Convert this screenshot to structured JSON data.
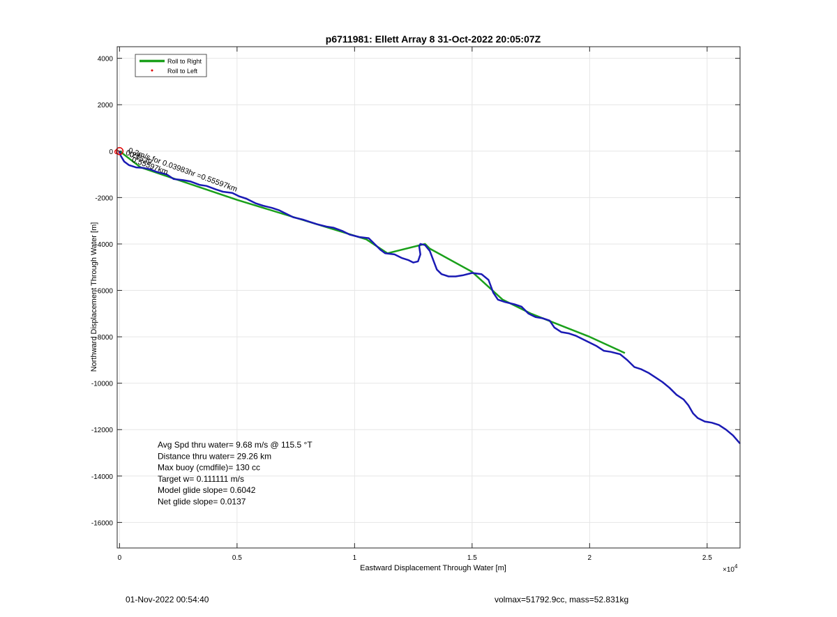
{
  "chart_data": {
    "type": "line",
    "title": "p6711981: Ellett Array 8 31-Oct-2022 20:05:07Z",
    "xlabel": "Eastward Displacement Through Water [m]",
    "ylabel": "Northward Displacement Through Water [m]",
    "x_exponent_label": "×10",
    "x_exponent_power": "4",
    "xlim": [
      -100,
      26400
    ],
    "ylim": [
      -17100,
      4500
    ],
    "x_scale": 10000,
    "xticks": [
      0,
      5000,
      10000,
      15000,
      20000,
      25000
    ],
    "xtick_labels": [
      "0",
      "0.5",
      "1",
      "1.5",
      "2",
      "2.5"
    ],
    "yticks": [
      4000,
      2000,
      0,
      -2000,
      -4000,
      -6000,
      -8000,
      -10000,
      -12000,
      -14000,
      -16000
    ],
    "ytick_labels": [
      "4000",
      "2000",
      "0",
      "-2000",
      "-4000",
      "-6000",
      "-8000",
      "-10000",
      "-12000",
      "-14000",
      "-16000"
    ],
    "grid": true,
    "legend_position": "top-left",
    "legend": [
      {
        "label": "Roll to Right",
        "color": "#1aa01a",
        "style": "line"
      },
      {
        "label": "Roll to Left",
        "color": "#e00000",
        "style": "dot"
      }
    ],
    "series": [
      {
        "name": "Roll to Right",
        "color": "#1aa01a",
        "x": [
          0,
          900,
          5000,
          10500,
          11400,
          13000,
          13200,
          15000,
          16300,
          17500,
          19000,
          20000,
          21500
        ],
        "y": [
          0,
          -700,
          -2100,
          -3800,
          -4400,
          -4000,
          -4200,
          -5200,
          -6400,
          -7000,
          -7600,
          -8000,
          -8700
        ]
      },
      {
        "color": "#1a1ab4",
        "x": [
          0,
          50,
          200,
          400,
          700,
          1000,
          1300,
          1600,
          2000,
          2300,
          2700,
          3000,
          3400,
          3700,
          4100,
          4400,
          4800,
          5100,
          5400,
          5800,
          6100,
          6500,
          6800,
          7100,
          7400,
          7800,
          8100,
          8400,
          8800,
          9100,
          9500,
          9800,
          10200,
          10600,
          10900,
          11100,
          11300,
          11700,
          12000,
          12300,
          12500,
          12700,
          12800,
          12750,
          12800,
          13000,
          13200,
          13350,
          13500,
          13700,
          14000,
          14300,
          14600,
          15000,
          15400,
          15700,
          15900,
          16100,
          16400,
          16800,
          17100,
          17400,
          17700,
          18000,
          18300,
          18500,
          18800,
          19100,
          19400,
          19700,
          20000,
          20300,
          20600,
          20900,
          21300,
          21600,
          21900,
          22200,
          22500,
          22800,
          23100,
          23400,
          23700,
          24000,
          24200,
          24400,
          24600,
          24900,
          25200,
          25500,
          25800,
          26100,
          26400
        ],
        "y": [
          0,
          -200,
          -450,
          -600,
          -700,
          -720,
          -780,
          -900,
          -1000,
          -1200,
          -1250,
          -1300,
          -1450,
          -1500,
          -1650,
          -1750,
          -1800,
          -1950,
          -2050,
          -2250,
          -2350,
          -2450,
          -2550,
          -2700,
          -2850,
          -2950,
          -3050,
          -3150,
          -3250,
          -3300,
          -3450,
          -3600,
          -3700,
          -3750,
          -4050,
          -4250,
          -4400,
          -4450,
          -4600,
          -4700,
          -4800,
          -4750,
          -4450,
          -4100,
          -4000,
          -4050,
          -4300,
          -4700,
          -5100,
          -5300,
          -5400,
          -5400,
          -5350,
          -5250,
          -5300,
          -5550,
          -6100,
          -6400,
          -6500,
          -6600,
          -6700,
          -7000,
          -7150,
          -7200,
          -7300,
          -7600,
          -7800,
          -7850,
          -7950,
          -8100,
          -8250,
          -8400,
          -8600,
          -8650,
          -8750,
          -9000,
          -9300,
          -9400,
          -9550,
          -9750,
          -9950,
          -10200,
          -10500,
          -10700,
          -10950,
          -11300,
          -11500,
          -11650,
          -11700,
          -11800,
          -12000,
          -12250,
          -12600
        ]
      }
    ],
    "markers": [
      {
        "x": 0,
        "y": 0,
        "color": "#e00000"
      }
    ],
    "annotations": [
      {
        "text": "0.2m/s for 0.03983hr =0.55597km",
        "x": 350,
        "y": -50,
        "angle": 20
      },
      {
        "text": "0.1539",
        "x": 400,
        "y": -220,
        "angle": 22
      },
      {
        "text": "0.55597km",
        "x": 500,
        "y": -450,
        "angle": 20
      },
      {
        "text": "0.28",
        "x": 250,
        "y": -150,
        "angle": 18
      }
    ],
    "stats": [
      "Avg Spd thru water=  9.68 m/s @ 115.5 °T",
      "Distance thru water= 29.26 km",
      "Max buoy (cmdfile)= 130 cc",
      "Target w= 0.111111 m/s",
      "Model glide slope= 0.6042",
      "Net glide slope= 0.0137"
    ]
  },
  "footer": {
    "timestamp": "01-Nov-2022 00:54:40",
    "volmass": "volmax=51792.9cc, mass=52.831kg"
  }
}
